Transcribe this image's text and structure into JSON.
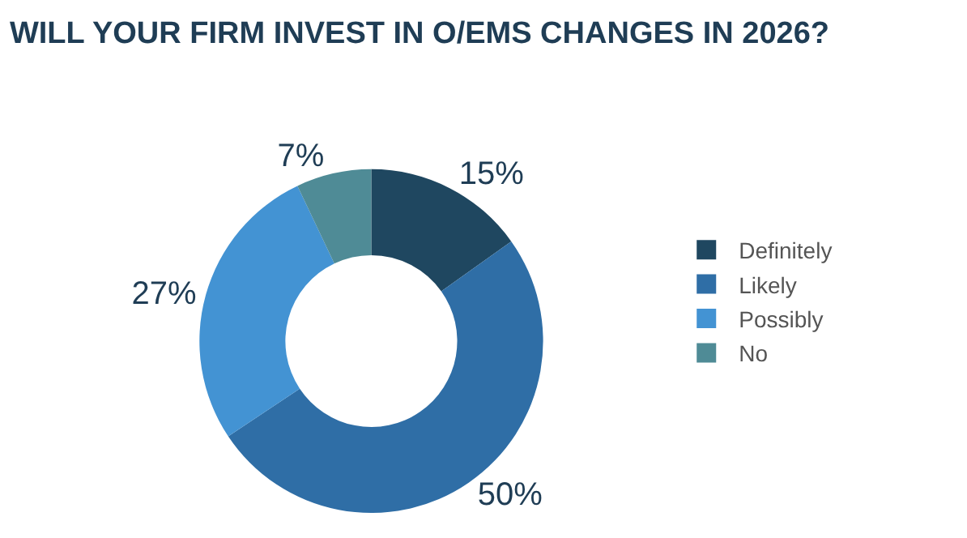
{
  "chart_data": {
    "type": "donut",
    "title": "WILL YOUR FIRM INVEST IN O/EMS CHANGES IN 2026?",
    "categories": [
      "Definitely",
      "Likely",
      "Possibly",
      "No"
    ],
    "values": [
      15,
      50,
      27,
      7
    ],
    "colors": [
      "#1f4760",
      "#2f6ea6",
      "#4393d3",
      "#4f8b96"
    ],
    "value_labels": [
      "15%",
      "50%",
      "27%",
      "7%"
    ],
    "legend": "right"
  }
}
